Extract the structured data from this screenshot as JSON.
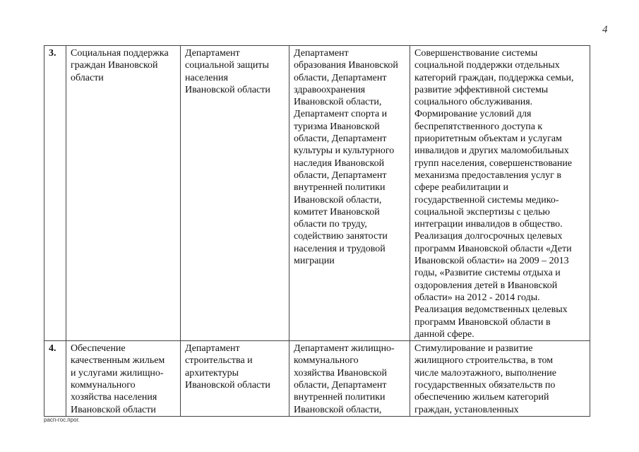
{
  "page_number": "4",
  "footer": "расп-гос.прог.",
  "rows": [
    {
      "num": "3.",
      "program": [
        "Социальная поддержка",
        "граждан Ивановской",
        "области"
      ],
      "responsible": [
        "Департамент",
        "социальной защиты",
        "населения",
        "Ивановской области"
      ],
      "co_executors": [
        "Департамент",
        "образования Ивановской",
        "области, Департамент",
        "здравоохранения",
        "Ивановской области,",
        "Департамент спорта и",
        "туризма Ивановской",
        "области, Департамент",
        "культуры и культурного",
        "наследия Ивановской",
        "области, Департамент",
        "внутренней политики",
        "Ивановской области,",
        "комитет Ивановской",
        "области по труду,",
        "содействию занятости",
        "населения и трудовой",
        "миграции"
      ],
      "goals": [
        "Совершенствование системы",
        "социальной поддержки отдельных",
        "категорий граждан, поддержка семьи,",
        "развитие эффективной системы",
        "социального обслуживания.",
        "Формирование условий для",
        "беспрепятственного доступа к",
        "приоритетным объектам и услугам",
        "инвалидов и других маломобильных",
        "групп населения, совершенствование",
        "механизма предоставления услуг в",
        "сфере реабилитации и",
        "государственной системы медико-",
        "социальной экспертизы с целью",
        "интеграции инвалидов в общество.",
        "Реализация долгосрочных целевых",
        "программ Ивановской области «Дети",
        "Ивановской области» на 2009 – 2013",
        "годы, «Развитие системы отдыха и",
        "оздоровления детей в Ивановской",
        "области» на 2012 - 2014 годы.",
        "Реализация ведомственных целевых",
        "программ Ивановской области в",
        "данной сфере."
      ]
    },
    {
      "num": "4.",
      "program": [
        "Обеспечение",
        "качественным жильем",
        "и услугами жилищно-",
        "коммунального",
        "хозяйства населения",
        "Ивановской области"
      ],
      "responsible": [
        "Департамент",
        "строительства и",
        "архитектуры",
        "Ивановской области"
      ],
      "co_executors": [
        "Департамент жилищно-",
        "коммунального",
        "хозяйства Ивановской",
        "области, Департамент",
        "внутренней политики",
        "Ивановской области,"
      ],
      "goals": [
        "Стимулирование и развитие",
        "жилищного строительства, в том",
        "числе малоэтажного, выполнение",
        "государственных обязательств по",
        "обеспечению жильем категорий",
        "граждан, установленных"
      ]
    }
  ]
}
